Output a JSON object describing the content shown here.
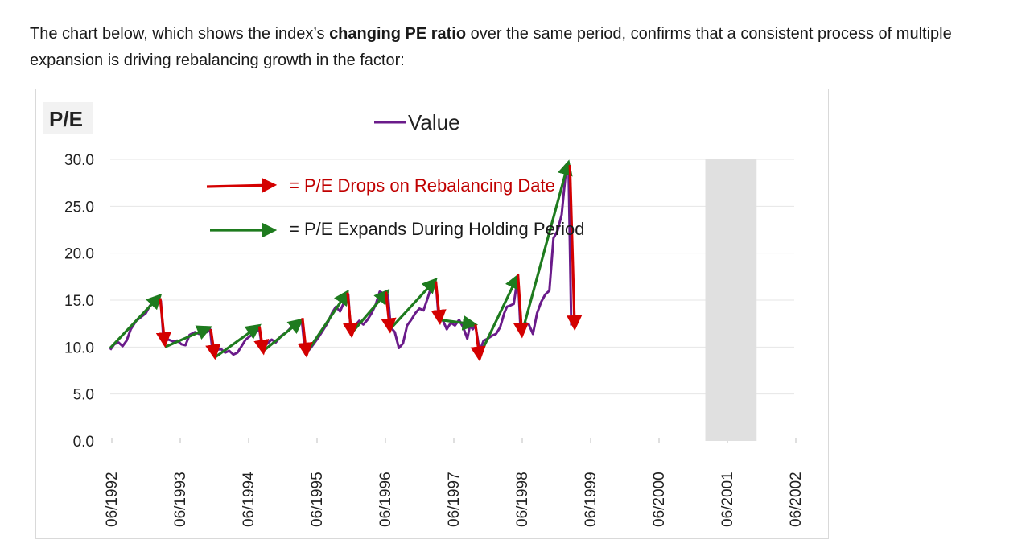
{
  "intro": {
    "part1": "The chart below, which shows the index’s ",
    "bold": "changing PE ratio",
    "part2": " over the same period, confirms that a consistent process of multiple expansion is driving rebalancing growth in the factor:"
  },
  "colors": {
    "series": "#6a1b8a",
    "red_arrow": "#d40000",
    "green_arrow": "#1e7b1e",
    "shade": "#e0e0e0",
    "grid": "#e6e6e6"
  },
  "chart_data": {
    "type": "line",
    "ylabel": "P/E",
    "ylim": [
      0,
      30
    ],
    "yticks": [
      "30.0",
      "25.0",
      "20.0",
      "15.0",
      "10.0",
      "5.0",
      "0.0"
    ],
    "ytick_values": [
      30,
      25,
      20,
      15,
      10,
      5,
      0
    ],
    "xlim": [
      0,
      10
    ],
    "xticks": [
      "06/1992",
      "06/1993",
      "06/1994",
      "06/1995",
      "06/1996",
      "06/1997",
      "06/1998",
      "06/1999",
      "06/2000",
      "06/2001",
      "06/2002"
    ],
    "legend": "Value",
    "annotations": {
      "red": "= P/E Drops on Rebalancing Date",
      "green": "= P/E Expands During Holding Period"
    },
    "shaded_range": [
      8.7,
      9.45
    ],
    "series": [
      {
        "name": "Value",
        "points": [
          [
            0.0,
            9.7
          ],
          [
            0.06,
            10.3
          ],
          [
            0.12,
            10.5
          ],
          [
            0.18,
            10.1
          ],
          [
            0.24,
            10.7
          ],
          [
            0.3,
            11.9
          ],
          [
            0.38,
            12.8
          ],
          [
            0.45,
            13.2
          ],
          [
            0.52,
            13.6
          ],
          [
            0.58,
            14.4
          ],
          [
            0.64,
            14.9
          ],
          [
            0.7,
            14.6
          ],
          [
            0.74,
            14.9
          ],
          [
            0.78,
            10.6
          ],
          [
            0.85,
            10.8
          ],
          [
            0.92,
            10.6
          ],
          [
            0.98,
            10.7
          ],
          [
            1.04,
            10.3
          ],
          [
            1.1,
            10.2
          ],
          [
            1.16,
            11.3
          ],
          [
            1.24,
            11.6
          ],
          [
            1.3,
            11.4
          ],
          [
            1.37,
            11.8
          ],
          [
            1.42,
            11.6
          ],
          [
            1.46,
            11.9
          ],
          [
            1.5,
            9.2
          ],
          [
            1.56,
            9.7
          ],
          [
            1.62,
            9.8
          ],
          [
            1.68,
            9.4
          ],
          [
            1.74,
            9.6
          ],
          [
            1.8,
            9.2
          ],
          [
            1.86,
            9.4
          ],
          [
            1.92,
            10.1
          ],
          [
            1.98,
            10.8
          ],
          [
            2.05,
            11.2
          ],
          [
            2.12,
            11.6
          ],
          [
            2.18,
            11.9
          ],
          [
            2.22,
            9.9
          ],
          [
            2.3,
            10.4
          ],
          [
            2.36,
            10.8
          ],
          [
            2.42,
            10.5
          ],
          [
            2.5,
            11.2
          ],
          [
            2.58,
            11.6
          ],
          [
            2.66,
            12.2
          ],
          [
            2.74,
            12.6
          ],
          [
            2.8,
            12.9
          ],
          [
            2.85,
            9.3
          ],
          [
            2.92,
            9.8
          ],
          [
            2.98,
            10.4
          ],
          [
            3.05,
            11.1
          ],
          [
            3.12,
            11.9
          ],
          [
            3.18,
            12.6
          ],
          [
            3.24,
            13.6
          ],
          [
            3.3,
            14.3
          ],
          [
            3.36,
            13.8
          ],
          [
            3.42,
            14.8
          ],
          [
            3.48,
            15.6
          ],
          [
            3.52,
            11.3
          ],
          [
            3.58,
            12.3
          ],
          [
            3.64,
            12.8
          ],
          [
            3.7,
            12.4
          ],
          [
            3.76,
            12.9
          ],
          [
            3.82,
            13.6
          ],
          [
            3.88,
            14.5
          ],
          [
            3.94,
            15.9
          ],
          [
            4.0,
            15.7
          ],
          [
            4.06,
            15.6
          ],
          [
            4.1,
            12.1
          ],
          [
            4.16,
            11.6
          ],
          [
            4.22,
            9.9
          ],
          [
            4.28,
            10.4
          ],
          [
            4.34,
            12.3
          ],
          [
            4.4,
            12.9
          ],
          [
            4.46,
            13.6
          ],
          [
            4.52,
            14.1
          ],
          [
            4.58,
            13.9
          ],
          [
            4.64,
            15.2
          ],
          [
            4.7,
            16.6
          ],
          [
            4.76,
            16.9
          ],
          [
            4.8,
            13.2
          ],
          [
            4.86,
            12.9
          ],
          [
            4.92,
            11.9
          ],
          [
            4.98,
            12.6
          ],
          [
            5.04,
            12.3
          ],
          [
            5.1,
            12.9
          ],
          [
            5.16,
            12.1
          ],
          [
            5.22,
            10.9
          ],
          [
            5.26,
            12.3
          ],
          [
            5.3,
            11.9
          ],
          [
            5.34,
            12.3
          ],
          [
            5.4,
            9.6
          ],
          [
            5.46,
            10.7
          ],
          [
            5.52,
            10.9
          ],
          [
            5.58,
            11.2
          ],
          [
            5.64,
            11.4
          ],
          [
            5.7,
            12.1
          ],
          [
            5.76,
            13.6
          ],
          [
            5.8,
            14.3
          ],
          [
            5.84,
            14.4
          ],
          [
            5.9,
            14.6
          ],
          [
            5.96,
            17.6
          ],
          [
            6.0,
            11.6
          ],
          [
            6.06,
            12.6
          ],
          [
            6.12,
            12.4
          ],
          [
            6.18,
            11.4
          ],
          [
            6.24,
            13.6
          ],
          [
            6.3,
            14.8
          ],
          [
            6.36,
            15.6
          ],
          [
            6.42,
            16.0
          ],
          [
            6.48,
            21.6
          ],
          [
            6.54,
            22.4
          ],
          [
            6.6,
            24.1
          ],
          [
            6.66,
            28.6
          ],
          [
            6.7,
            29.4
          ],
          [
            6.74,
            12.3
          ]
        ]
      }
    ],
    "red_arrows": [
      [
        [
          0.73,
          15.2
        ],
        [
          0.8,
          10.2
        ]
      ],
      [
        [
          1.47,
          11.9
        ],
        [
          1.53,
          8.9
        ]
      ],
      [
        [
          2.18,
          12.2
        ],
        [
          2.24,
          9.4
        ]
      ],
      [
        [
          2.81,
          13.1
        ],
        [
          2.87,
          9.1
        ]
      ],
      [
        [
          3.47,
          15.8
        ],
        [
          3.53,
          11.2
        ]
      ],
      [
        [
          4.03,
          15.9
        ],
        [
          4.09,
          11.7
        ]
      ],
      [
        [
          4.76,
          17.0
        ],
        [
          4.82,
          12.6
        ]
      ],
      [
        [
          5.34,
          12.4
        ],
        [
          5.4,
          8.7
        ]
      ],
      [
        [
          5.96,
          17.8
        ],
        [
          6.02,
          11.2
        ]
      ],
      [
        [
          6.72,
          29.4
        ],
        [
          6.79,
          12.0
        ]
      ]
    ],
    "green_arrows": [
      [
        [
          0.0,
          9.9
        ],
        [
          0.73,
          15.5
        ]
      ],
      [
        [
          0.8,
          10.0
        ],
        [
          1.46,
          12.1
        ]
      ],
      [
        [
          1.53,
          8.9
        ],
        [
          2.18,
          12.3
        ]
      ],
      [
        [
          2.24,
          9.6
        ],
        [
          2.8,
          12.9
        ]
      ],
      [
        [
          2.87,
          9.4
        ],
        [
          3.47,
          15.9
        ]
      ],
      [
        [
          3.53,
          11.5
        ],
        [
          4.06,
          16.0
        ]
      ],
      [
        [
          4.09,
          11.9
        ],
        [
          4.76,
          17.2
        ]
      ],
      [
        [
          4.82,
          12.9
        ],
        [
          5.34,
          12.4
        ]
      ],
      [
        [
          5.4,
          9.1
        ],
        [
          5.96,
          17.6
        ]
      ],
      [
        [
          6.02,
          11.5
        ],
        [
          6.7,
          29.7
        ]
      ]
    ]
  }
}
